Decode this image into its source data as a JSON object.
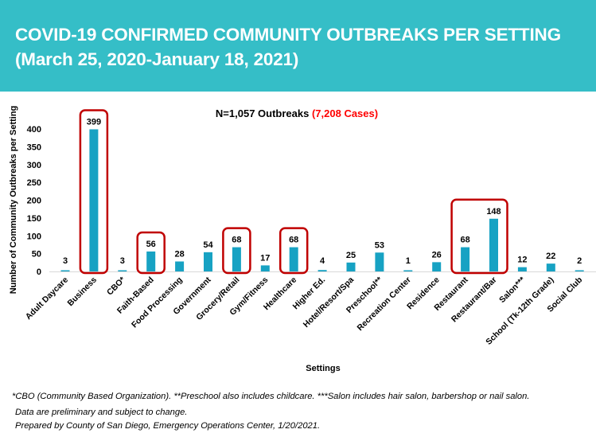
{
  "header": {
    "title_line1": "COVID-19 CONFIRMED COMMUNITY OUTBREAKS PER SETTING",
    "title_line2": "(March 25, 2020-January 18, 2021)",
    "background_color": "#35bec7"
  },
  "chart_data": {
    "type": "bar",
    "title": "N=1,057 Outbreaks",
    "title_highlight": "(7,208 Cases)",
    "xlabel": "Settings",
    "ylabel": "Number of Community Outbreaks per Setting",
    "ylim": [
      0,
      400
    ],
    "yticks": [
      0,
      50,
      100,
      150,
      200,
      250,
      300,
      350,
      400
    ],
    "grid": false,
    "categories": [
      "Adult Daycare",
      "Business",
      "CBO*",
      "Faith-Based",
      "Food Processing",
      "Government",
      "Grocery/Retail",
      "Gym/Fitness",
      "Healthcare",
      "Higher Ed.",
      "Hotel/Resort/Spa",
      "Preschool**",
      "Recreation Center",
      "Residence",
      "Restaurant",
      "Restaurant/Bar",
      "Salon***",
      "School (Tk-12th Grade)",
      "Social Club"
    ],
    "values": [
      3,
      399,
      3,
      56,
      28,
      54,
      68,
      17,
      68,
      4,
      25,
      53,
      1,
      26,
      68,
      148,
      12,
      22,
      2
    ],
    "highlight_groups": [
      [
        "Business"
      ],
      [
        "Faith-Based"
      ],
      [
        "Grocery/Retail"
      ],
      [
        "Healthcare"
      ],
      [
        "Restaurant",
        "Restaurant/Bar"
      ]
    ],
    "colors": {
      "bar": "#17a2c3",
      "highlight_box": "#c00000",
      "cases_text": "#ff0000",
      "axis": "#d9d9d9"
    }
  },
  "footnotes": {
    "line1": "*CBO (Community Based Organization). **Preschool also includes childcare. ***Salon includes hair salon, barbershop or nail salon.",
    "line2": "Data are preliminary and subject to change.",
    "line3": "Prepared by County of San Diego, Emergency Operations Center, 1/20/2021."
  }
}
